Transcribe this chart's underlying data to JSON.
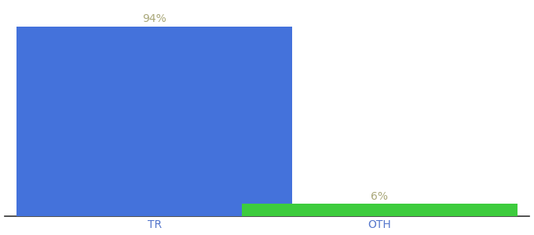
{
  "categories": [
    "TR",
    "OTH"
  ],
  "values": [
    94,
    6
  ],
  "bar_colors": [
    "#4472db",
    "#3dcc3d"
  ],
  "labels": [
    "94%",
    "6%"
  ],
  "ylim": [
    0,
    105
  ],
  "background_color": "#ffffff",
  "label_color": "#aaa87a",
  "label_fontsize": 10,
  "tick_fontsize": 10,
  "tick_color": "#5577cc",
  "bar_width": 0.55,
  "x_positions": [
    0.3,
    0.75
  ],
  "xlim": [
    0.0,
    1.05
  ]
}
